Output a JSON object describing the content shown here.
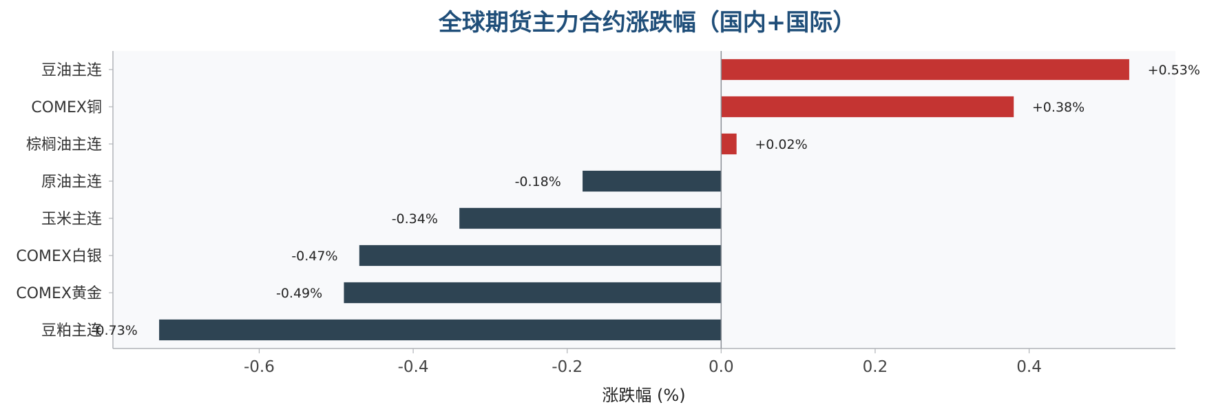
{
  "chart_data": {
    "type": "bar",
    "orientation": "horizontal",
    "title": "全球期货主力合约涨跌幅（国内+国际）",
    "xlabel": "涨跌幅 (%)",
    "ylabel": "",
    "categories": [
      "豆油主连",
      "COMEX铜",
      "棕榈油主连",
      "原油主连",
      "玉米主连",
      "COMEX白银",
      "COMEX黄金",
      "豆粕主连"
    ],
    "values": [
      0.53,
      0.38,
      0.02,
      -0.18,
      -0.34,
      -0.47,
      -0.49,
      -0.73
    ],
    "data_labels": [
      "+0.53%",
      "+0.38%",
      "+0.02%",
      "-0.18%",
      "-0.34%",
      "-0.47%",
      "-0.49%",
      "-0.73%"
    ],
    "xlim": [
      -0.79,
      0.59
    ],
    "xticks": [
      -0.6,
      -0.4,
      -0.2,
      0.0,
      0.2,
      0.4
    ],
    "xtick_labels": [
      "-0.6",
      "-0.4",
      "-0.2",
      "0.0",
      "0.2",
      "0.4"
    ],
    "grid": false,
    "legend": "none",
    "colors": {
      "positive": "#c43432",
      "negative": "#2e4453",
      "title": "#1f4e79",
      "plot_background": "#f8f9fb",
      "axis": "#b0b3b8",
      "zero_line": "#8a8f96"
    }
  }
}
